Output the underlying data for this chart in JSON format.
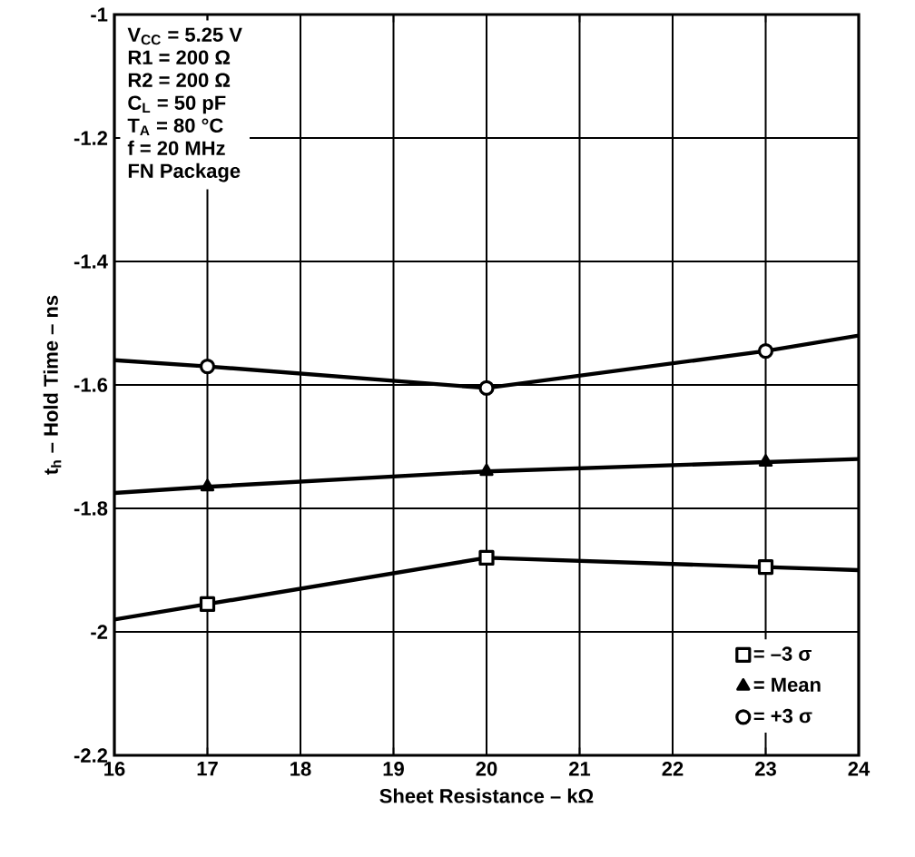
{
  "chart_data": {
    "type": "line",
    "xlabel": "Sheet Resistance – kΩ",
    "ylabel": "t$_{h}$ – Hold Time – ns",
    "x": [
      16,
      17,
      20,
      23,
      24
    ],
    "series": [
      {
        "name": "= –3 σ",
        "color": "#000000",
        "marker": "square",
        "values": [
          -1.98,
          -1.955,
          -1.88,
          -1.895,
          -1.9
        ]
      },
      {
        "name": "= Mean",
        "color": "#000000",
        "marker": "triangle",
        "values": [
          -1.775,
          -1.765,
          -1.74,
          -1.725,
          -1.72
        ]
      },
      {
        "name": "= +3 σ",
        "color": "#000000",
        "marker": "circle",
        "values": [
          -1.56,
          -1.57,
          -1.605,
          -1.545,
          -1.52
        ]
      }
    ],
    "xlim": [
      16,
      24
    ],
    "ylim": [
      -2.2,
      -1
    ],
    "xticks": [
      16,
      17,
      18,
      19,
      20,
      21,
      22,
      23,
      24
    ],
    "yticks": [
      -2.2,
      -2,
      -1.8,
      -1.6,
      -1.4,
      -1.2,
      -1
    ],
    "grid": true,
    "legend": "bottom right",
    "line_style": "solid",
    "annotations": [
      "V$_{CC}$ = 5.25 V",
      "R1 = 200 Ω",
      "R2 = 200 Ω",
      "C$_{L}$ = 50 pF",
      "T$_{A}$ = 80 °C",
      "f = 20 MHz",
      "FN Package"
    ]
  }
}
